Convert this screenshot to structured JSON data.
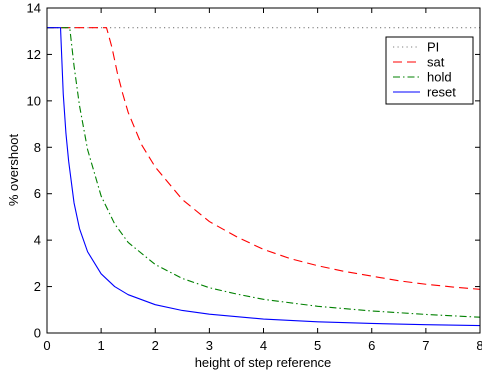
{
  "chart_data": {
    "type": "line",
    "title": "",
    "xlabel": "height of step reference",
    "ylabel": "% overshoot",
    "xlim": [
      0,
      8
    ],
    "ylim": [
      0,
      14
    ],
    "xticks": [
      0,
      1,
      2,
      3,
      4,
      5,
      6,
      7,
      8
    ],
    "yticks": [
      0,
      2,
      4,
      6,
      8,
      10,
      12,
      14
    ],
    "grid": false,
    "legend_position": "top-right",
    "series": [
      {
        "name": "PI",
        "color": "#7f7f7f",
        "style": "dotted",
        "x": [
          0,
          8
        ],
        "y": [
          13.15,
          13.15
        ]
      },
      {
        "name": "sat",
        "color": "#ff0000",
        "style": "dashed",
        "x": [
          0.0,
          1.1,
          1.2,
          1.3,
          1.4,
          1.5,
          1.75,
          2.0,
          2.5,
          3.0,
          3.5,
          4.0,
          4.5,
          5.0,
          5.5,
          6.0,
          6.5,
          7.0,
          7.5,
          8.0
        ],
        "y": [
          13.15,
          13.15,
          12.3,
          11.2,
          10.3,
          9.5,
          8.1,
          7.15,
          5.75,
          4.8,
          4.15,
          3.6,
          3.2,
          2.9,
          2.65,
          2.45,
          2.25,
          2.1,
          1.98,
          1.88
        ]
      },
      {
        "name": "hold",
        "color": "#008000",
        "style": "dashdot",
        "x": [
          0.0,
          0.42,
          0.5,
          0.6,
          0.75,
          1.0,
          1.25,
          1.5,
          2.0,
          2.5,
          3.0,
          3.5,
          4.0,
          5.0,
          6.0,
          7.0,
          8.0
        ],
        "y": [
          13.15,
          13.15,
          11.5,
          9.8,
          7.9,
          5.9,
          4.7,
          3.9,
          2.95,
          2.35,
          1.95,
          1.68,
          1.45,
          1.15,
          0.95,
          0.8,
          0.68
        ]
      },
      {
        "name": "reset",
        "color": "#0000ff",
        "style": "solid",
        "x": [
          0.0,
          0.25,
          0.3,
          0.35,
          0.4,
          0.5,
          0.6,
          0.75,
          1.0,
          1.25,
          1.5,
          2.0,
          2.5,
          3.0,
          4.0,
          5.0,
          6.0,
          7.0,
          8.0
        ],
        "y": [
          13.15,
          13.15,
          10.3,
          8.6,
          7.4,
          5.6,
          4.5,
          3.5,
          2.55,
          2.0,
          1.65,
          1.22,
          0.97,
          0.81,
          0.6,
          0.48,
          0.41,
          0.36,
          0.32
        ]
      }
    ]
  }
}
